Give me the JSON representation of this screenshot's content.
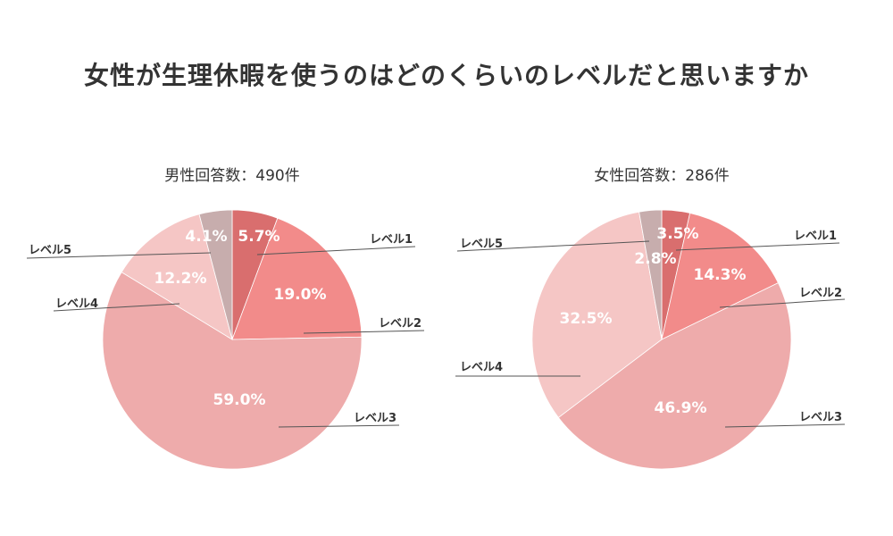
{
  "title": "女性が生理休暇を使うのはどのくらいのレベルだと思いますか",
  "chart_data": [
    {
      "type": "pie",
      "title": "男性回答数：490件",
      "categories": [
        "レベル1",
        "レベル2",
        "レベル3",
        "レベル4",
        "レベル5"
      ],
      "values": [
        5.7,
        19.0,
        59.0,
        12.2,
        4.1
      ],
      "unit": "%",
      "colors": [
        "#d96e6e",
        "#f28b8a",
        "#eeabab",
        "#f5c6c5",
        "#c7adad"
      ],
      "start": "top",
      "direction": "clockwise",
      "legend": "none"
    },
    {
      "type": "pie",
      "title": "女性回答数：286件",
      "categories": [
        "レベル1",
        "レベル2",
        "レベル3",
        "レベル4",
        "レベル5"
      ],
      "values": [
        3.5,
        14.3,
        46.9,
        32.5,
        2.8
      ],
      "unit": "%",
      "colors": [
        "#d96e6e",
        "#f28b8a",
        "#eeabab",
        "#f5c6c5",
        "#c7adad"
      ],
      "start": "top",
      "direction": "clockwise",
      "legend": "none"
    }
  ]
}
